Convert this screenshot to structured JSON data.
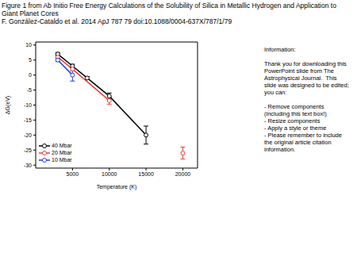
{
  "header": {
    "lines": [
      "Figure 1 from Ab Initio Free Energy Calculations of the Solubility of Silica in Metallic Hydrogen and Application to Giant Planet Cores",
      "F. González-Cataldo et al. 2014 ApJ 787 79 doi:10.1088/0004-637X/787/1/79"
    ]
  },
  "text_box": {
    "paragraphs": [
      "Information:",
      "Thank you for downloading this PowerPoint slide from The Astrophysical Journal.  This slide was designed to be edited; you can:",
      "- Remove components (including this text box!)\n- Resize components\n- Apply a style or theme\n- Please remember to include the original article citation information."
    ]
  },
  "chart_data": {
    "type": "line",
    "x_label": "Temperature (K)",
    "y_label": "ΔG(eV)",
    "xlim": [
      0,
      22000
    ],
    "xticks": [
      5000,
      10000,
      15000,
      20000
    ],
    "ylim": [
      -31,
      11
    ],
    "yticks": [
      10,
      5,
      0,
      -5,
      -10,
      -15,
      -20,
      -25,
      -30
    ],
    "grid": false,
    "legend": "lower left",
    "marker": "circle",
    "series": [
      {
        "name": "40 Mbar",
        "color": "#000000",
        "x": [
          3000,
          5000,
          7000,
          10000,
          15000
        ],
        "values": [
          7,
          3,
          -1,
          -7,
          -20
        ],
        "errors": [
          0.5,
          0.6,
          0.5,
          1,
          3
        ]
      },
      {
        "name": "20 Mbar",
        "color": "#e8413a",
        "x": [
          3000,
          5000,
          10000,
          15000,
          20000
        ],
        "values": [
          6,
          2,
          -8.5,
          null,
          -26
        ],
        "errors": [
          0.5,
          0.6,
          1.2,
          null,
          2
        ]
      },
      {
        "name": "10 Mbar",
        "color": "#2040d0",
        "x": [
          3000,
          5000
        ],
        "values": [
          5,
          0
        ],
        "errors": [
          0.5,
          2
        ]
      }
    ]
  }
}
